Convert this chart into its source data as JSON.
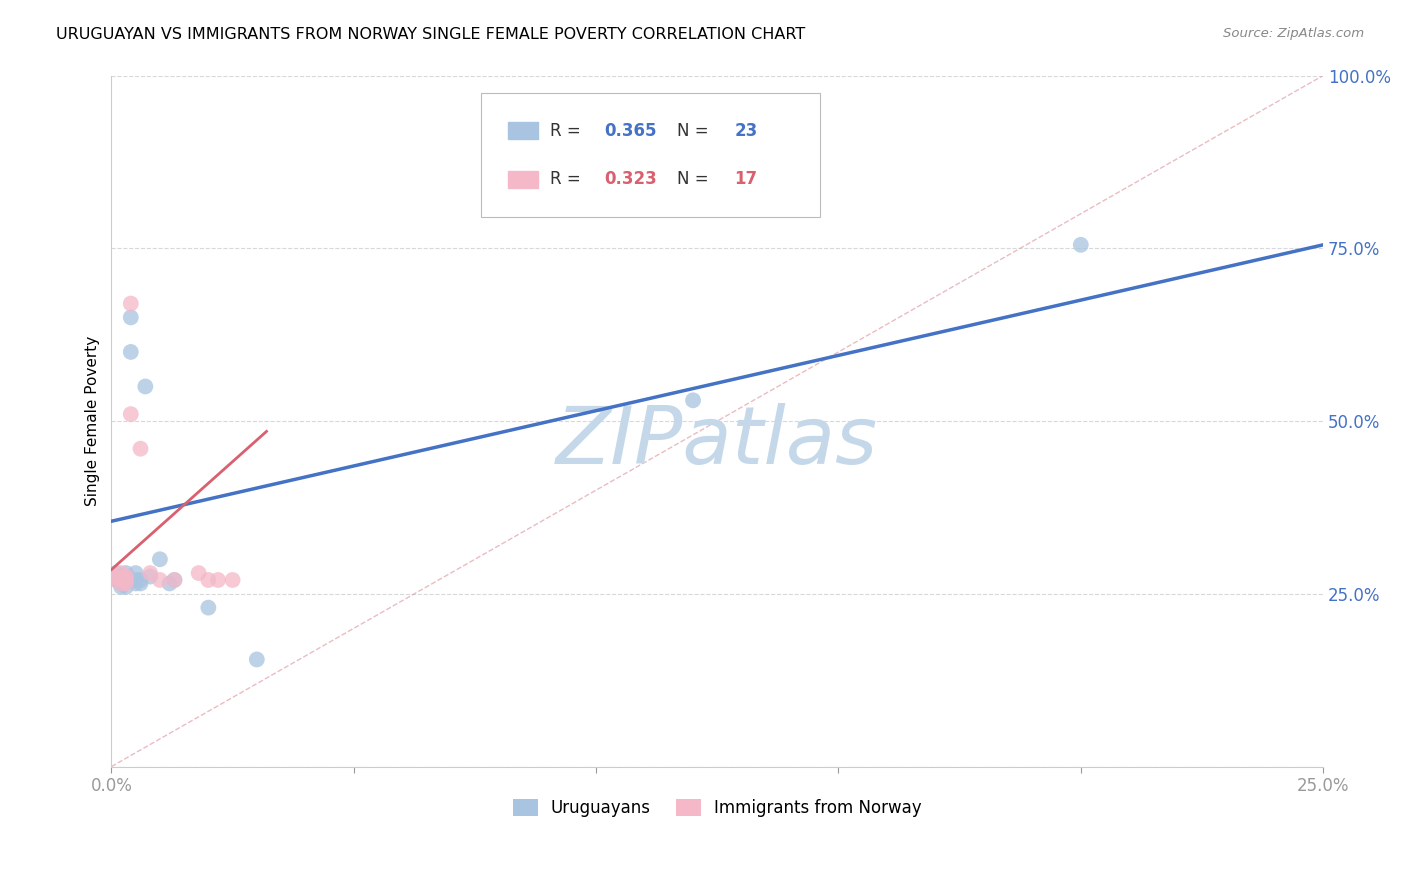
{
  "title": "URUGUAYAN VS IMMIGRANTS FROM NORWAY SINGLE FEMALE POVERTY CORRELATION CHART",
  "source": "Source: ZipAtlas.com",
  "ylabel": "Single Female Poverty",
  "xlim": [
    0.0,
    0.25
  ],
  "ylim": [
    0.0,
    1.0
  ],
  "xticks": [
    0.0,
    0.05,
    0.1,
    0.15,
    0.2,
    0.25
  ],
  "yticks": [
    0.0,
    0.25,
    0.5,
    0.75,
    1.0
  ],
  "ytick_labels": [
    "",
    "25.0%",
    "50.0%",
    "75.0%",
    "100.0%"
  ],
  "xtick_labels": [
    "0.0%",
    "",
    "",
    "",
    "",
    "25.0%"
  ],
  "uruguayan_color": "#a8c4e0",
  "norway_color": "#f4b8c8",
  "line_color_uru": "#4472c4",
  "line_color_nor": "#d9606e",
  "diag_color": "#e0a0a8",
  "R_uru": "0.365",
  "N_uru": "23",
  "R_nor": "0.323",
  "N_nor": "17",
  "uru_line_x": [
    0.0,
    0.25
  ],
  "uru_line_y": [
    0.355,
    0.755
  ],
  "nor_line_x": [
    0.0,
    0.032
  ],
  "nor_line_y": [
    0.285,
    0.485
  ],
  "uruguayan_x": [
    0.001,
    0.001,
    0.002,
    0.002,
    0.003,
    0.003,
    0.003,
    0.004,
    0.004,
    0.005,
    0.005,
    0.005,
    0.006,
    0.006,
    0.007,
    0.008,
    0.01,
    0.012,
    0.013,
    0.02,
    0.03,
    0.12,
    0.2
  ],
  "uruguayan_y": [
    0.28,
    0.27,
    0.26,
    0.265,
    0.26,
    0.27,
    0.28,
    0.6,
    0.65,
    0.265,
    0.27,
    0.28,
    0.265,
    0.27,
    0.55,
    0.275,
    0.3,
    0.265,
    0.27,
    0.23,
    0.155,
    0.53,
    0.755
  ],
  "norway_x": [
    0.001,
    0.001,
    0.002,
    0.002,
    0.003,
    0.003,
    0.003,
    0.004,
    0.004,
    0.006,
    0.008,
    0.01,
    0.013,
    0.018,
    0.02,
    0.022,
    0.025
  ],
  "norway_y": [
    0.27,
    0.275,
    0.265,
    0.28,
    0.27,
    0.275,
    0.265,
    0.51,
    0.67,
    0.46,
    0.28,
    0.27,
    0.27,
    0.28,
    0.27,
    0.27,
    0.27
  ],
  "marker_size": 130,
  "background_color": "#ffffff",
  "watermark": "ZIPatlas",
  "watermark_color": "#c5d8ea",
  "legend_R_color_uru": "#4472c4",
  "legend_R_color_nor": "#d9606e"
}
